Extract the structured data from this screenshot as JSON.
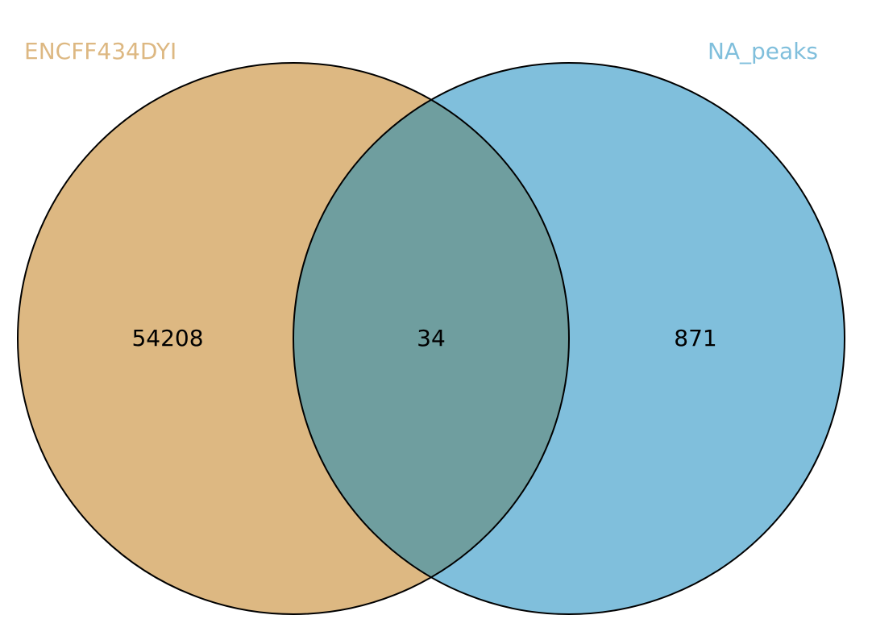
{
  "venn": {
    "sets": [
      {
        "name": "ENCFF434DYI",
        "fill": "#ddb882",
        "label_color": "#ddb882"
      },
      {
        "name": "NA_peaks",
        "fill": "#80bfdc",
        "label_color": "#80bfdc"
      }
    ],
    "intersection_fill": "#6f9e9f",
    "outline_color": "#000000",
    "counts": {
      "left_only": "54208",
      "intersection": "34",
      "right_only": "871"
    }
  }
}
